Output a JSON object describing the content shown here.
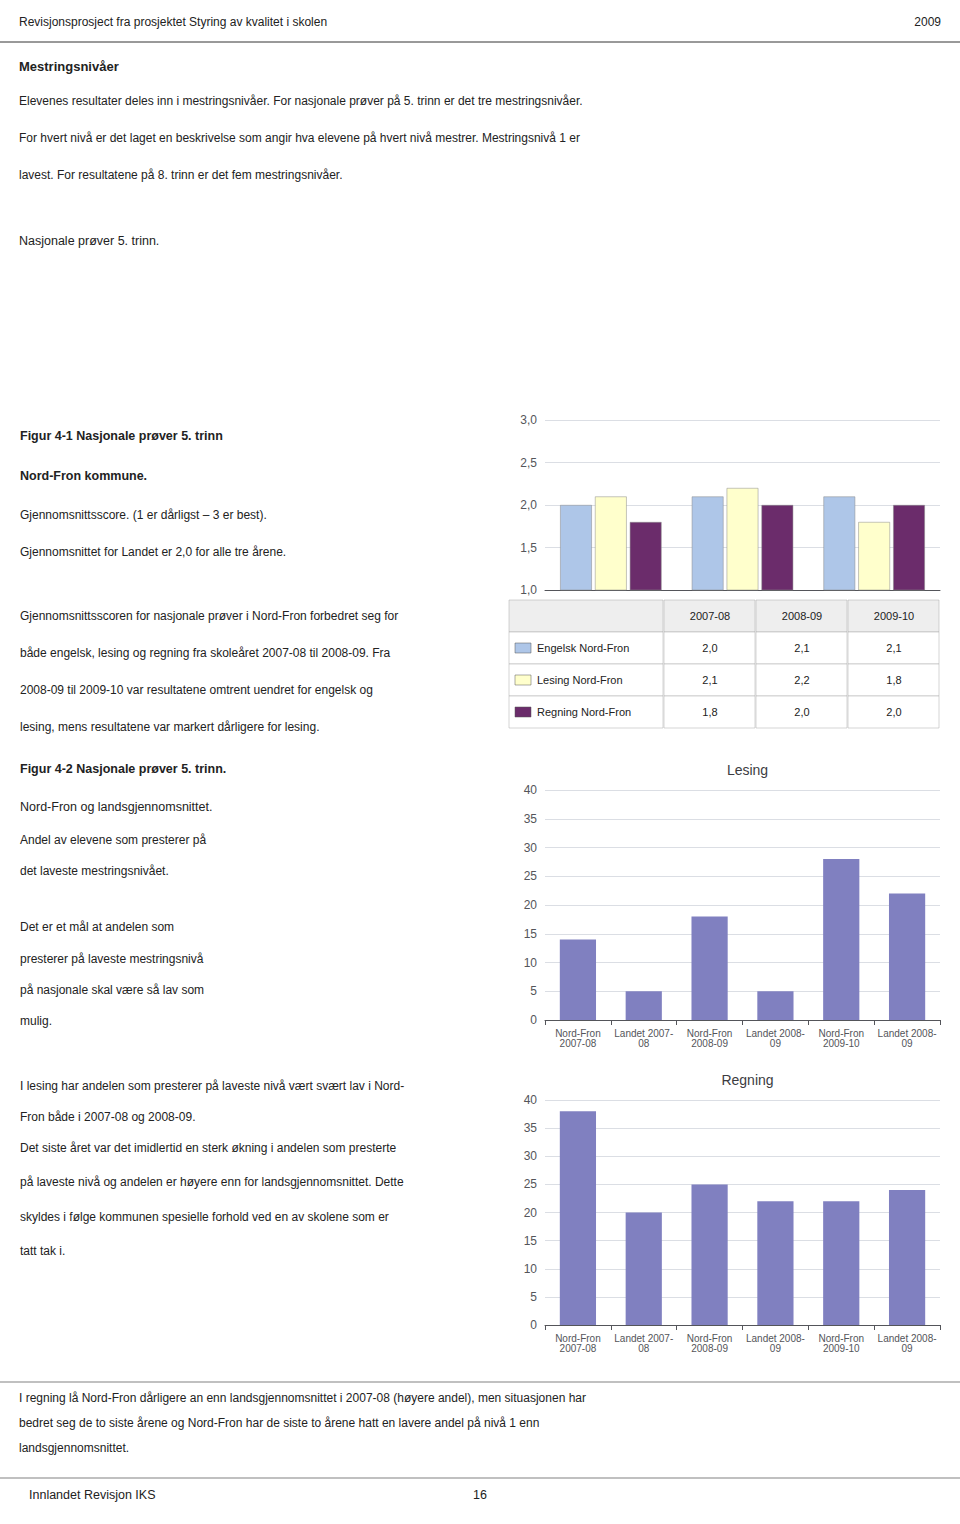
{
  "chart_data": [
    {
      "type": "bar",
      "categories": [
        "2007-08",
        "2008-09",
        "2009-10"
      ],
      "series": [
        {
          "name": "Engelsk Nord-Fron",
          "color": "#aec6e8",
          "values": [
            2.0,
            2.1,
            2.1
          ],
          "value_labels": [
            "2,0",
            "2,1",
            "2,1"
          ]
        },
        {
          "name": "Lesing Nord-Fron",
          "color": "#ffffcc",
          "values": [
            2.1,
            2.2,
            1.8
          ],
          "value_labels": [
            "2,1",
            "2,2",
            "1,8"
          ]
        },
        {
          "name": "Regning Nord-Fron",
          "color": "#6b2c6b",
          "values": [
            1.8,
            2.0,
            2.0
          ],
          "value_labels": [
            "1,8",
            "2,0",
            "2,0"
          ]
        }
      ],
      "ylim": [
        1.0,
        3.0
      ],
      "yticks": [
        {
          "value": 1.0,
          "label": "1,0"
        },
        {
          "value": 1.5,
          "label": "1,5"
        },
        {
          "value": 2.0,
          "label": "2,0"
        },
        {
          "value": 2.5,
          "label": "2,5"
        },
        {
          "value": 3.0,
          "label": "3,0"
        }
      ],
      "grid": true,
      "tick_labels": "y",
      "annotations": [
        "Revisjonsprosject fra prosjektet Styring av kvalitet i skolen",
        "2009",
        "Mestringsnivåer",
        "Elevenes resultater deles inn i mestringsnivåer. For nasjonale prøver på 5. trinn er det tre mestringsnivåer.",
        "For hvert nivå er det laget en beskrivelse som angir hva elevene på hvert nivå mestrer. Mestringsnivå 1 er",
        "lavest. For resultatene på 8. trinn er det fem mestringsnivåer.",
        "Nasjonale prøver 5. trinn.",
        "Figur 4-1 Nasjonale prøver 5. trinn",
        "Nord-Fron kommune.",
        "Gjennomsnittsscore. (1 er dårligst – 3 er best).",
        "Gjennomsnittet for Landet er 2,0 for alle tre årene.",
        "Gjennomsnittsscoren for nasjonale prøver i Nord-Fron forbedret seg for",
        "både engelsk, lesing og regning fra skoleåret 2007-08 til 2008-09. Fra",
        "2008-09 til 2009-10 var resultatene omtrent uendret for engelsk og",
        "lesing, mens resultatene var markert dårligere for lesing."
      ]
    },
    {
      "type": "bar",
      "title": "Lesing",
      "categories": [
        "Nord-Fron\n2007-08",
        "Landet 2007-\n08",
        "Nord-Fron\n2008-09",
        "Landet 2008-\n09",
        "Nord-Fron\n2009-10",
        "Landet 2008-\n09"
      ],
      "values": [
        14,
        5,
        18,
        5,
        28,
        22
      ],
      "color": "#8080c0",
      "ylim": [
        0,
        40
      ],
      "yticks": [
        0,
        5,
        10,
        15,
        20,
        25,
        30,
        35,
        40
      ],
      "grid": true,
      "annotations": [
        "Figur 4-2 Nasjonale prøver 5. trinn.",
        "Nord-Fron og landsgjennomsnittet.",
        "Andel av elevene som presterer på",
        "det laveste mestringsnivået.",
        "Det er et mål at andelen som",
        "presterer på laveste mestringsnivå",
        "på nasjonale skal være så lav som",
        "mulig."
      ]
    },
    {
      "type": "bar",
      "title": "Regning",
      "categories": [
        "Nord-Fron\n2007-08",
        "Landet 2007-\n08",
        "Nord-Fron\n2008-09",
        "Landet 2008-\n09",
        "Nord-Fron\n2009-10",
        "Landet 2008-\n09"
      ],
      "values": [
        38,
        20,
        25,
        22,
        22,
        24
      ],
      "color": "#8080c0",
      "ylim": [
        0,
        40
      ],
      "yticks": [
        0,
        5,
        10,
        15,
        20,
        25,
        30,
        35,
        40
      ],
      "grid": true,
      "annotations": [
        "I lesing har andelen som presterer på laveste nivå vært svært lav i Nord-",
        "Fron både i 2007-08 og 2008-09.",
        "Det siste året var det imidlertid en sterk økning i andelen som presterte",
        "på laveste nivå og andelen er høyere enn for landsgjennomsnittet. Dette",
        "skyldes i følge kommunen spesielle forhold ved en av skolene som er",
        "tatt tak i.",
        "I regning lå Nord-Fron dårligere an enn landsgjennomsnittet i 2007-08 (høyere andel), men situasjonen har",
        "bedret seg de to siste årene og Nord-Fron har de siste to årene hatt en lavere andel på nivå 1 enn",
        "landsgjennomsnittet.",
        "Innlandet Revisjon IKS",
        "16"
      ]
    }
  ]
}
